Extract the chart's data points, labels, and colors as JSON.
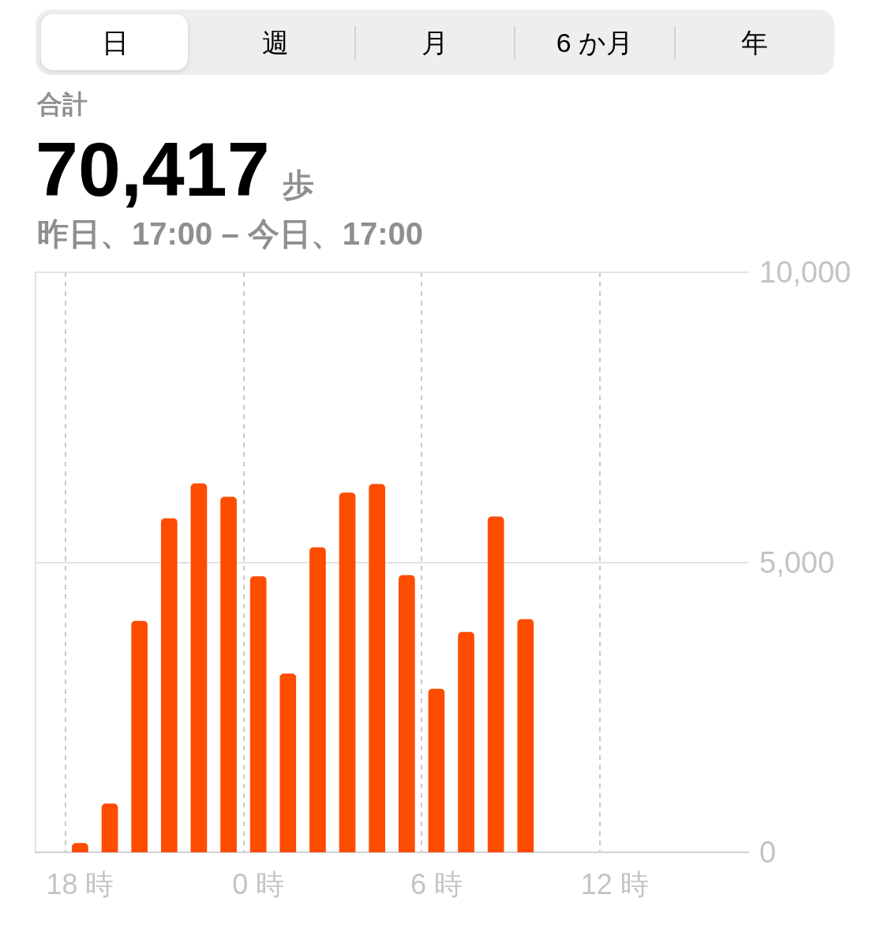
{
  "chart_data": {
    "type": "bar",
    "title": "合計",
    "subtitle": "昨日、17:00 – 今日、17:00",
    "annotations": [
      "日",
      "週",
      "月",
      "6 か月",
      "年",
      "70,417",
      "歩"
    ],
    "categories": [
      null,
      "18 時",
      null,
      null,
      null,
      null,
      null,
      "0 時",
      null,
      null,
      null,
      null,
      null,
      "6 時",
      null,
      null,
      null,
      null,
      null,
      "12 時",
      null,
      null,
      null,
      null
    ],
    "values": [
      null,
      160,
      840,
      3990,
      5760,
      6360,
      6130,
      4760,
      3080,
      5260,
      6200,
      6350,
      4780,
      2820,
      3800,
      5790,
      4020,
      null,
      null,
      null,
      null,
      null,
      null,
      null
    ],
    "color": "#fe4c00",
    "ylim": [
      0,
      10000
    ],
    "yticks": [
      0,
      {
        "value": 5000,
        "label": "5,000"
      },
      {
        "value": 10000,
        "label": "10,000"
      }
    ],
    "grid": "x",
    "ref_lines": [
      {
        "axis": "y",
        "value": 5000,
        "color": "#e2e2e6",
        "line_style": "solid"
      }
    ]
  }
}
